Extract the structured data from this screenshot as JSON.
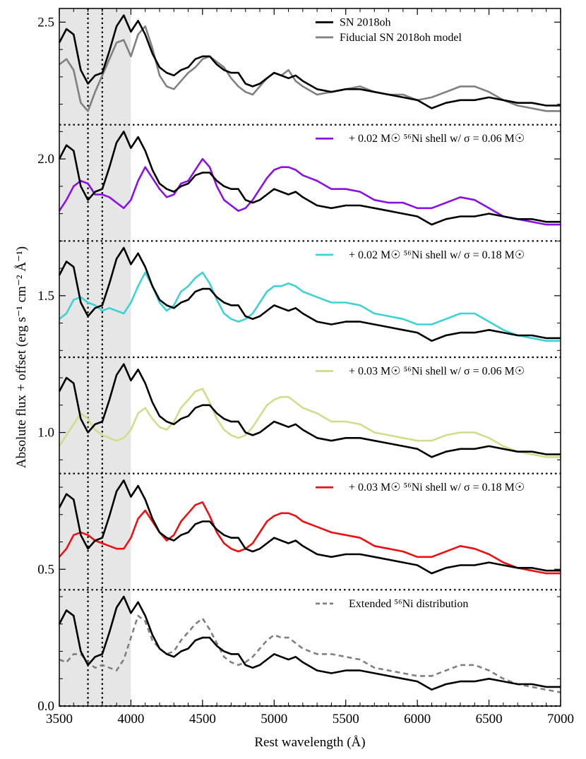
{
  "chart_data": {
    "type": "line",
    "xlabel": "Rest wavelength (Å)",
    "ylabel": "Absolute flux + offset (erg s⁻¹ cm⁻² Å⁻¹)",
    "xlim": [
      3500,
      7000
    ],
    "ylim": [
      0.0,
      2.55
    ],
    "xticks": [
      3500,
      4000,
      4500,
      5000,
      5500,
      6000,
      6500,
      7000
    ],
    "yticks": [
      0.0,
      0.5,
      1.0,
      1.5,
      2.0,
      2.5
    ],
    "grid": false,
    "shaded_region": [
      3500,
      4000
    ],
    "vertical_dotted_lines": [
      3700,
      3800
    ],
    "horizontal_separators": [
      0.0,
      0.425,
      0.85,
      1.275,
      1.7,
      2.125
    ],
    "colors": {
      "observed": "#000000",
      "fiducial": "#808080",
      "violet": "#8a10e6",
      "cyan": "#3dd3d3",
      "olive": "#d2dc8a",
      "red": "#ee1010",
      "dashed": "#808080",
      "shade": "#e6e6e6"
    },
    "panels": [
      {
        "offset": 2.125,
        "legend": [
          {
            "label": "SN 2018oh",
            "color": "#000000",
            "style": "solid"
          },
          {
            "label": "Fiducial SN 2018oh model",
            "color": "#808080",
            "style": "solid"
          }
        ],
        "model_x": [
          3500,
          3550,
          3600,
          3650,
          3700,
          3750,
          3800,
          3850,
          3900,
          3950,
          4000,
          4050,
          4100,
          4150,
          4200,
          4250,
          4300,
          4350,
          4400,
          4450,
          4500,
          4550,
          4600,
          4650,
          4700,
          4750,
          4800,
          4850,
          4900,
          4950,
          5000,
          5050,
          5100,
          5150,
          5200,
          5300,
          5400,
          5500,
          5600,
          5700,
          5800,
          5900,
          6000,
          6100,
          6200,
          6300,
          6400,
          6500,
          6600,
          6700,
          6800,
          6900,
          7000
        ],
        "model_y": [
          0.22,
          0.24,
          0.2,
          0.08,
          0.05,
          0.12,
          0.18,
          0.24,
          0.3,
          0.31,
          0.25,
          0.33,
          0.36,
          0.28,
          0.18,
          0.14,
          0.13,
          0.16,
          0.19,
          0.21,
          0.24,
          0.25,
          0.23,
          0.21,
          0.17,
          0.14,
          0.12,
          0.11,
          0.14,
          0.17,
          0.19,
          0.18,
          0.2,
          0.16,
          0.14,
          0.11,
          0.12,
          0.13,
          0.14,
          0.12,
          0.11,
          0.11,
          0.09,
          0.1,
          0.12,
          0.14,
          0.14,
          0.12,
          0.09,
          0.07,
          0.06,
          0.05,
          0.05
        ],
        "model_color": "#808080",
        "model_dashed": false
      },
      {
        "offset": 1.7,
        "legend": [
          {
            "label": "+ 0.02 M☉ ⁵⁶Ni shell w/ σ = 0.06 M☉",
            "color": "#8a10e6",
            "style": "solid"
          }
        ],
        "model_x": [
          3500,
          3550,
          3600,
          3650,
          3700,
          3750,
          3800,
          3850,
          3900,
          3950,
          4000,
          4050,
          4100,
          4150,
          4200,
          4250,
          4300,
          4350,
          4400,
          4450,
          4500,
          4550,
          4600,
          4650,
          4700,
          4750,
          4800,
          4850,
          4900,
          4950,
          5000,
          5050,
          5100,
          5150,
          5200,
          5300,
          5400,
          5500,
          5600,
          5700,
          5800,
          5900,
          6000,
          6100,
          6200,
          6300,
          6400,
          6500,
          6600,
          6700,
          6800,
          6900,
          7000
        ],
        "model_y": [
          0.11,
          0.15,
          0.2,
          0.22,
          0.21,
          0.17,
          0.17,
          0.16,
          0.14,
          0.12,
          0.15,
          0.22,
          0.27,
          0.23,
          0.19,
          0.16,
          0.17,
          0.21,
          0.22,
          0.26,
          0.3,
          0.27,
          0.2,
          0.15,
          0.13,
          0.11,
          0.12,
          0.15,
          0.19,
          0.23,
          0.26,
          0.27,
          0.27,
          0.26,
          0.24,
          0.22,
          0.19,
          0.19,
          0.18,
          0.15,
          0.14,
          0.14,
          0.12,
          0.12,
          0.14,
          0.16,
          0.15,
          0.12,
          0.09,
          0.08,
          0.07,
          0.06,
          0.06
        ],
        "model_color": "#8a10e6",
        "model_dashed": false
      },
      {
        "offset": 1.275,
        "legend": [
          {
            "label": "+ 0.02 M☉ ⁵⁶Ni shell w/ σ = 0.18 M☉",
            "color": "#3dd3d3",
            "style": "solid"
          }
        ],
        "model_x": [
          3500,
          3550,
          3600,
          3650,
          3700,
          3750,
          3800,
          3850,
          3900,
          3950,
          4000,
          4050,
          4100,
          4150,
          4200,
          4250,
          4300,
          4350,
          4400,
          4450,
          4500,
          4550,
          4600,
          4650,
          4700,
          4750,
          4800,
          4850,
          4900,
          4950,
          5000,
          5050,
          5100,
          5150,
          5200,
          5300,
          5400,
          5500,
          5600,
          5700,
          5800,
          5900,
          6000,
          6100,
          6200,
          6300,
          6400,
          6500,
          6600,
          6700,
          6800,
          6900,
          7000
        ],
        "model_y": [
          0.14,
          0.16,
          0.21,
          0.22,
          0.2,
          0.19,
          0.17,
          0.18,
          0.17,
          0.16,
          0.2,
          0.26,
          0.31,
          0.26,
          0.2,
          0.17,
          0.19,
          0.24,
          0.26,
          0.29,
          0.31,
          0.27,
          0.21,
          0.16,
          0.14,
          0.13,
          0.14,
          0.16,
          0.2,
          0.24,
          0.26,
          0.26,
          0.27,
          0.26,
          0.24,
          0.22,
          0.2,
          0.2,
          0.19,
          0.16,
          0.15,
          0.14,
          0.12,
          0.12,
          0.14,
          0.16,
          0.16,
          0.13,
          0.1,
          0.08,
          0.07,
          0.06,
          0.06
        ],
        "model_color": "#3dd3d3",
        "model_dashed": false
      },
      {
        "offset": 0.85,
        "legend": [
          {
            "label": "+ 0.03 M☉ ⁵⁶Ni shell w/ σ = 0.06 M☉",
            "color": "#d2dc8a",
            "style": "solid"
          }
        ],
        "model_x": [
          3500,
          3550,
          3600,
          3650,
          3700,
          3750,
          3800,
          3850,
          3900,
          3950,
          4000,
          4050,
          4100,
          4150,
          4200,
          4250,
          4300,
          4350,
          4400,
          4450,
          4500,
          4550,
          4600,
          4650,
          4700,
          4750,
          4800,
          4850,
          4900,
          4950,
          5000,
          5050,
          5100,
          5150,
          5200,
          5300,
          5400,
          5500,
          5600,
          5700,
          5800,
          5900,
          6000,
          6100,
          6200,
          6300,
          6400,
          6500,
          6600,
          6700,
          6800,
          6900,
          7000
        ],
        "model_y": [
          0.1,
          0.14,
          0.18,
          0.22,
          0.2,
          0.16,
          0.14,
          0.13,
          0.12,
          0.13,
          0.16,
          0.22,
          0.24,
          0.2,
          0.17,
          0.16,
          0.19,
          0.24,
          0.27,
          0.3,
          0.31,
          0.26,
          0.2,
          0.16,
          0.14,
          0.13,
          0.14,
          0.17,
          0.21,
          0.25,
          0.27,
          0.28,
          0.28,
          0.26,
          0.24,
          0.22,
          0.19,
          0.19,
          0.18,
          0.15,
          0.14,
          0.13,
          0.12,
          0.12,
          0.14,
          0.15,
          0.15,
          0.13,
          0.1,
          0.08,
          0.07,
          0.06,
          0.06
        ],
        "model_color": "#d2dc8a",
        "model_dashed": false
      },
      {
        "offset": 0.425,
        "legend": [
          {
            "label": "+ 0.03 M☉ ⁵⁶Ni shell w/ σ = 0.18 M☉",
            "color": "#ee1010",
            "style": "solid"
          }
        ],
        "model_x": [
          3500,
          3550,
          3600,
          3650,
          3700,
          3750,
          3800,
          3850,
          3900,
          3950,
          4000,
          4050,
          4100,
          4150,
          4200,
          4250,
          4300,
          4350,
          4400,
          4450,
          4500,
          4550,
          4600,
          4650,
          4700,
          4750,
          4800,
          4850,
          4900,
          4950,
          5000,
          5050,
          5100,
          5150,
          5200,
          5300,
          5400,
          5500,
          5600,
          5700,
          5800,
          5900,
          6000,
          6100,
          6200,
          6300,
          6400,
          6500,
          6600,
          6700,
          6800,
          6900,
          7000
        ],
        "model_y": [
          0.12,
          0.15,
          0.2,
          0.21,
          0.2,
          0.18,
          0.17,
          0.16,
          0.15,
          0.15,
          0.19,
          0.26,
          0.29,
          0.25,
          0.21,
          0.18,
          0.2,
          0.25,
          0.28,
          0.31,
          0.32,
          0.27,
          0.21,
          0.17,
          0.15,
          0.14,
          0.15,
          0.17,
          0.21,
          0.25,
          0.27,
          0.28,
          0.28,
          0.27,
          0.25,
          0.23,
          0.21,
          0.2,
          0.19,
          0.16,
          0.15,
          0.14,
          0.12,
          0.12,
          0.14,
          0.16,
          0.15,
          0.13,
          0.1,
          0.08,
          0.07,
          0.06,
          0.06
        ],
        "model_color": "#ee1010",
        "model_dashed": false
      },
      {
        "offset": 0.0,
        "legend": [
          {
            "label": "Extended ⁵⁶Ni distribution",
            "color": "#808080",
            "style": "dashed"
          }
        ],
        "model_x": [
          3500,
          3550,
          3600,
          3650,
          3700,
          3750,
          3800,
          3850,
          3900,
          3950,
          4000,
          4050,
          4100,
          4150,
          4200,
          4250,
          4300,
          4350,
          4400,
          4450,
          4500,
          4550,
          4600,
          4650,
          4700,
          4750,
          4800,
          4850,
          4900,
          4950,
          5000,
          5050,
          5100,
          5150,
          5200,
          5300,
          5400,
          5500,
          5600,
          5700,
          5800,
          5900,
          6000,
          6100,
          6200,
          6300,
          6400,
          6500,
          6600,
          6700,
          6800,
          6900,
          7000
        ],
        "model_y": [
          0.17,
          0.16,
          0.19,
          0.19,
          0.16,
          0.14,
          0.15,
          0.14,
          0.13,
          0.17,
          0.25,
          0.33,
          0.31,
          0.24,
          0.21,
          0.19,
          0.2,
          0.24,
          0.27,
          0.3,
          0.32,
          0.28,
          0.23,
          0.18,
          0.16,
          0.15,
          0.16,
          0.18,
          0.21,
          0.24,
          0.26,
          0.25,
          0.25,
          0.23,
          0.21,
          0.19,
          0.19,
          0.18,
          0.17,
          0.14,
          0.13,
          0.12,
          0.11,
          0.11,
          0.13,
          0.15,
          0.15,
          0.13,
          0.1,
          0.08,
          0.07,
          0.06,
          0.05
        ],
        "model_color": "#808080",
        "model_dashed": true
      }
    ],
    "observed_x": [
      3500,
      3550,
      3600,
      3650,
      3700,
      3750,
      3800,
      3850,
      3900,
      3950,
      4000,
      4050,
      4100,
      4150,
      4200,
      4250,
      4300,
      4350,
      4400,
      4450,
      4500,
      4550,
      4600,
      4650,
      4700,
      4750,
      4800,
      4850,
      4900,
      4950,
      5000,
      5050,
      5100,
      5150,
      5200,
      5300,
      5400,
      5500,
      5600,
      5700,
      5800,
      5900,
      6000,
      6100,
      6200,
      6300,
      6400,
      6500,
      6600,
      6700,
      6800,
      6900,
      7000
    ],
    "observed_y": [
      0.3,
      0.35,
      0.33,
      0.2,
      0.15,
      0.18,
      0.19,
      0.27,
      0.36,
      0.4,
      0.34,
      0.38,
      0.33,
      0.26,
      0.21,
      0.19,
      0.18,
      0.2,
      0.21,
      0.24,
      0.25,
      0.25,
      0.22,
      0.2,
      0.19,
      0.19,
      0.15,
      0.14,
      0.15,
      0.17,
      0.19,
      0.18,
      0.17,
      0.18,
      0.16,
      0.13,
      0.12,
      0.13,
      0.13,
      0.12,
      0.11,
      0.1,
      0.09,
      0.06,
      0.08,
      0.09,
      0.09,
      0.1,
      0.09,
      0.08,
      0.08,
      0.07,
      0.07
    ]
  }
}
